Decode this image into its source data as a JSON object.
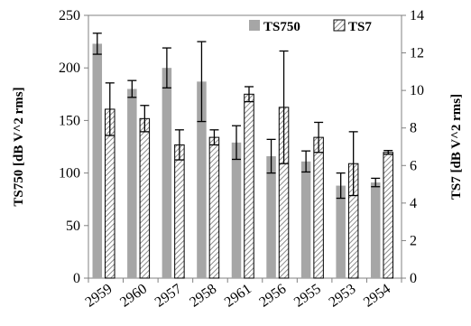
{
  "chart_data": {
    "type": "bar",
    "categories": [
      "2959",
      "2960",
      "2957",
      "2958",
      "2961",
      "2956",
      "2955",
      "2953",
      "2954"
    ],
    "series": [
      {
        "name": "TS750",
        "axis": "left",
        "values": [
          223,
          180,
          200,
          187,
          129,
          116,
          111,
          88,
          91
        ],
        "error": [
          10,
          8,
          19,
          38,
          16,
          16,
          10,
          12,
          4
        ],
        "color": "#a6a6a6",
        "pattern": "solid"
      },
      {
        "name": "TS7",
        "axis": "right",
        "values": [
          9.0,
          8.5,
          7.1,
          7.5,
          9.8,
          9.1,
          7.5,
          6.1,
          6.7
        ],
        "error": [
          1.4,
          0.7,
          0.8,
          0.4,
          0.4,
          3.0,
          0.8,
          1.7,
          0.1
        ],
        "color": "#ffffff",
        "pattern": "hatched"
      }
    ],
    "ylabel_left": "TS750 [dB V^2 rms]",
    "ylabel_right": "TS7 [dB V^2 rms]",
    "ylim_left": [
      0,
      250
    ],
    "yticks_left": [
      0,
      50,
      100,
      150,
      200,
      250
    ],
    "ylim_right": [
      0,
      14
    ],
    "yticks_right": [
      0,
      2,
      4,
      6,
      8,
      10,
      12,
      14
    ],
    "grid": false,
    "legend_position": "top-right"
  }
}
